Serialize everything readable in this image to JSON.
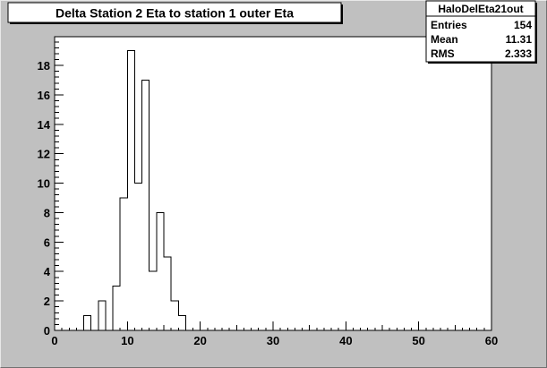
{
  "chart_data": {
    "type": "bar",
    "title": "Delta Station 2 Eta to station 1 outer Eta",
    "xlabel": "",
    "ylabel": "",
    "xlim": [
      0,
      60
    ],
    "ylim": [
      0,
      19.95
    ],
    "x_ticks": [
      0,
      10,
      20,
      30,
      40,
      50,
      60
    ],
    "y_ticks": [
      0,
      2,
      4,
      6,
      8,
      10,
      12,
      14,
      16,
      18
    ],
    "bin_width": 1,
    "bin_edges_start": 0,
    "values": [
      0,
      0,
      0,
      0,
      1,
      0,
      2,
      0,
      3,
      9,
      19,
      10,
      17,
      4,
      8,
      5,
      2,
      1,
      0,
      0,
      0,
      0,
      0,
      0,
      0,
      0,
      0,
      0,
      0,
      0,
      0,
      0,
      0,
      0,
      0,
      0,
      0,
      0,
      0,
      0,
      0,
      0,
      0,
      0,
      0,
      0,
      0,
      0,
      0,
      0,
      0,
      0,
      0,
      0,
      0,
      0,
      0,
      0,
      0,
      0
    ],
    "grid": false,
    "stats_box": {
      "name": "HaloDelEta21out",
      "rows": [
        {
          "label": "Entries",
          "value": "154"
        },
        {
          "label": "Mean",
          "value": "11.31"
        },
        {
          "label": "RMS",
          "value": "2.333"
        }
      ]
    }
  }
}
